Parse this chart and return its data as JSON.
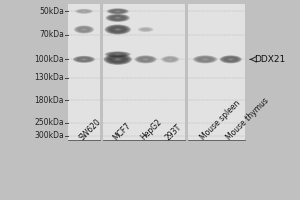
{
  "lanes": [
    "SW620",
    "MCF7",
    "HepG2",
    "293T",
    "Mouse spleen",
    "Mouse thymus"
  ],
  "mw_labels": [
    "300kDa",
    "250kDa",
    "180kDa",
    "130kDa",
    "100kDa",
    "70kDa",
    "50kDa"
  ],
  "mw_vals": [
    300,
    250,
    180,
    130,
    100,
    70,
    50
  ],
  "background_color": "#d8d8d8",
  "gel_bg_color": "#c8c8c8",
  "outer_bg": "#b8b8b8",
  "lane_fontsize": 5.5,
  "marker_fontsize": 5.5,
  "ddx21_label": "DDX21",
  "ddx21_fontsize": 6.5
}
